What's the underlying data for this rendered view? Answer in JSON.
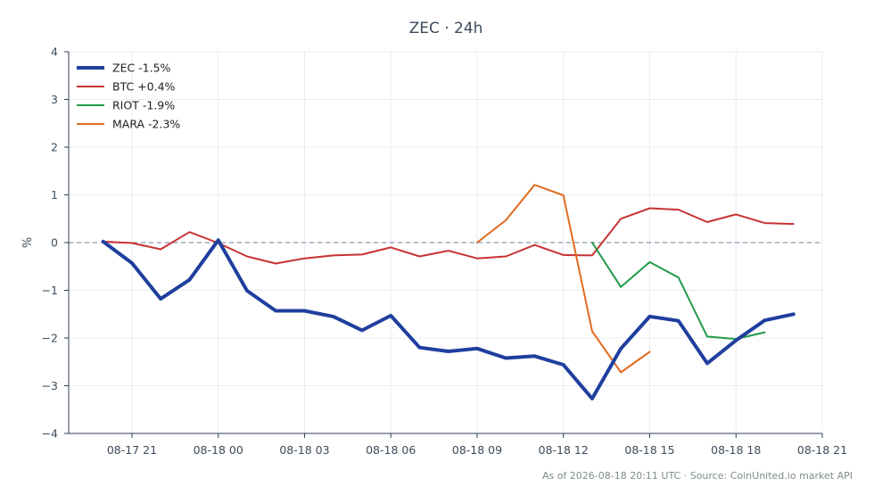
{
  "chart_data": {
    "type": "line",
    "title": "ZEC · 24h",
    "xlabel": "",
    "ylabel": "%",
    "x_ticks": [
      "08-17 21",
      "08-18 00",
      "08-18 03",
      "08-18 06",
      "08-18 09",
      "08-18 12",
      "08-18 15",
      "08-18 18",
      "08-18 21"
    ],
    "y_ticks": [
      -4,
      -3,
      -2,
      -1,
      0,
      1,
      2,
      3,
      4
    ],
    "xlim": [
      "08-17 18:48",
      "08-18 21:00"
    ],
    "ylim": [
      -4,
      4
    ],
    "grid": true,
    "legend_position": "top-left",
    "reference_line": 0,
    "x": [
      "08-17 20:00",
      "08-17 21:00",
      "08-17 22:00",
      "08-17 23:00",
      "08-18 00:00",
      "08-18 01:00",
      "08-18 02:00",
      "08-18 03:00",
      "08-18 04:00",
      "08-18 05:00",
      "08-18 06:00",
      "08-18 07:00",
      "08-18 08:00",
      "08-18 09:00",
      "08-18 10:00",
      "08-18 11:00",
      "08-18 12:00",
      "08-18 13:00",
      "08-18 14:00",
      "08-18 15:00",
      "08-18 16:00",
      "08-18 17:00",
      "08-18 18:00",
      "08-18 19:00",
      "08-18 20:00"
    ],
    "series": [
      {
        "name": "ZEC -1.5%",
        "color": "#1f3f9e",
        "width": 4,
        "values": [
          0.02,
          -0.43,
          -1.18,
          -0.78,
          0.05,
          -1.01,
          -1.43,
          -1.43,
          -1.55,
          -1.84,
          -1.53,
          -2.2,
          -2.28,
          -2.22,
          -2.42,
          -2.38,
          -2.56,
          -3.27,
          -2.22,
          -1.55,
          -1.64,
          -2.53,
          -2.05,
          -1.63,
          -1.5
        ]
      },
      {
        "name": "BTC +0.4%",
        "color": "#c93232",
        "width": 2,
        "values": [
          0.02,
          -0.01,
          -0.14,
          0.22,
          -0.01,
          -0.29,
          -0.44,
          -0.33,
          -0.27,
          -0.25,
          -0.1,
          -0.29,
          -0.17,
          -0.33,
          -0.29,
          -0.05,
          -0.26,
          -0.27,
          0.5,
          0.72,
          0.69,
          0.43,
          0.59,
          0.41,
          0.39
        ]
      },
      {
        "name": "RIOT -1.9%",
        "color": "#219a4a",
        "width": 2,
        "values": [
          null,
          null,
          null,
          null,
          null,
          null,
          null,
          null,
          null,
          null,
          null,
          null,
          null,
          null,
          null,
          null,
          null,
          0.0,
          -0.93,
          -0.41,
          -0.73,
          -1.97,
          -2.02,
          -1.88,
          null
        ]
      },
      {
        "name": "MARA -2.3%",
        "color": "#e06b1f",
        "width": 2,
        "values": [
          null,
          null,
          null,
          null,
          null,
          null,
          null,
          null,
          null,
          null,
          null,
          null,
          null,
          0.0,
          0.47,
          1.21,
          0.99,
          -1.86,
          -2.72,
          -2.29,
          null,
          null,
          null,
          null,
          null
        ]
      }
    ]
  },
  "footer": "As of 2026-08-18 20:11 UTC · Source: CoinUnited.io market API"
}
